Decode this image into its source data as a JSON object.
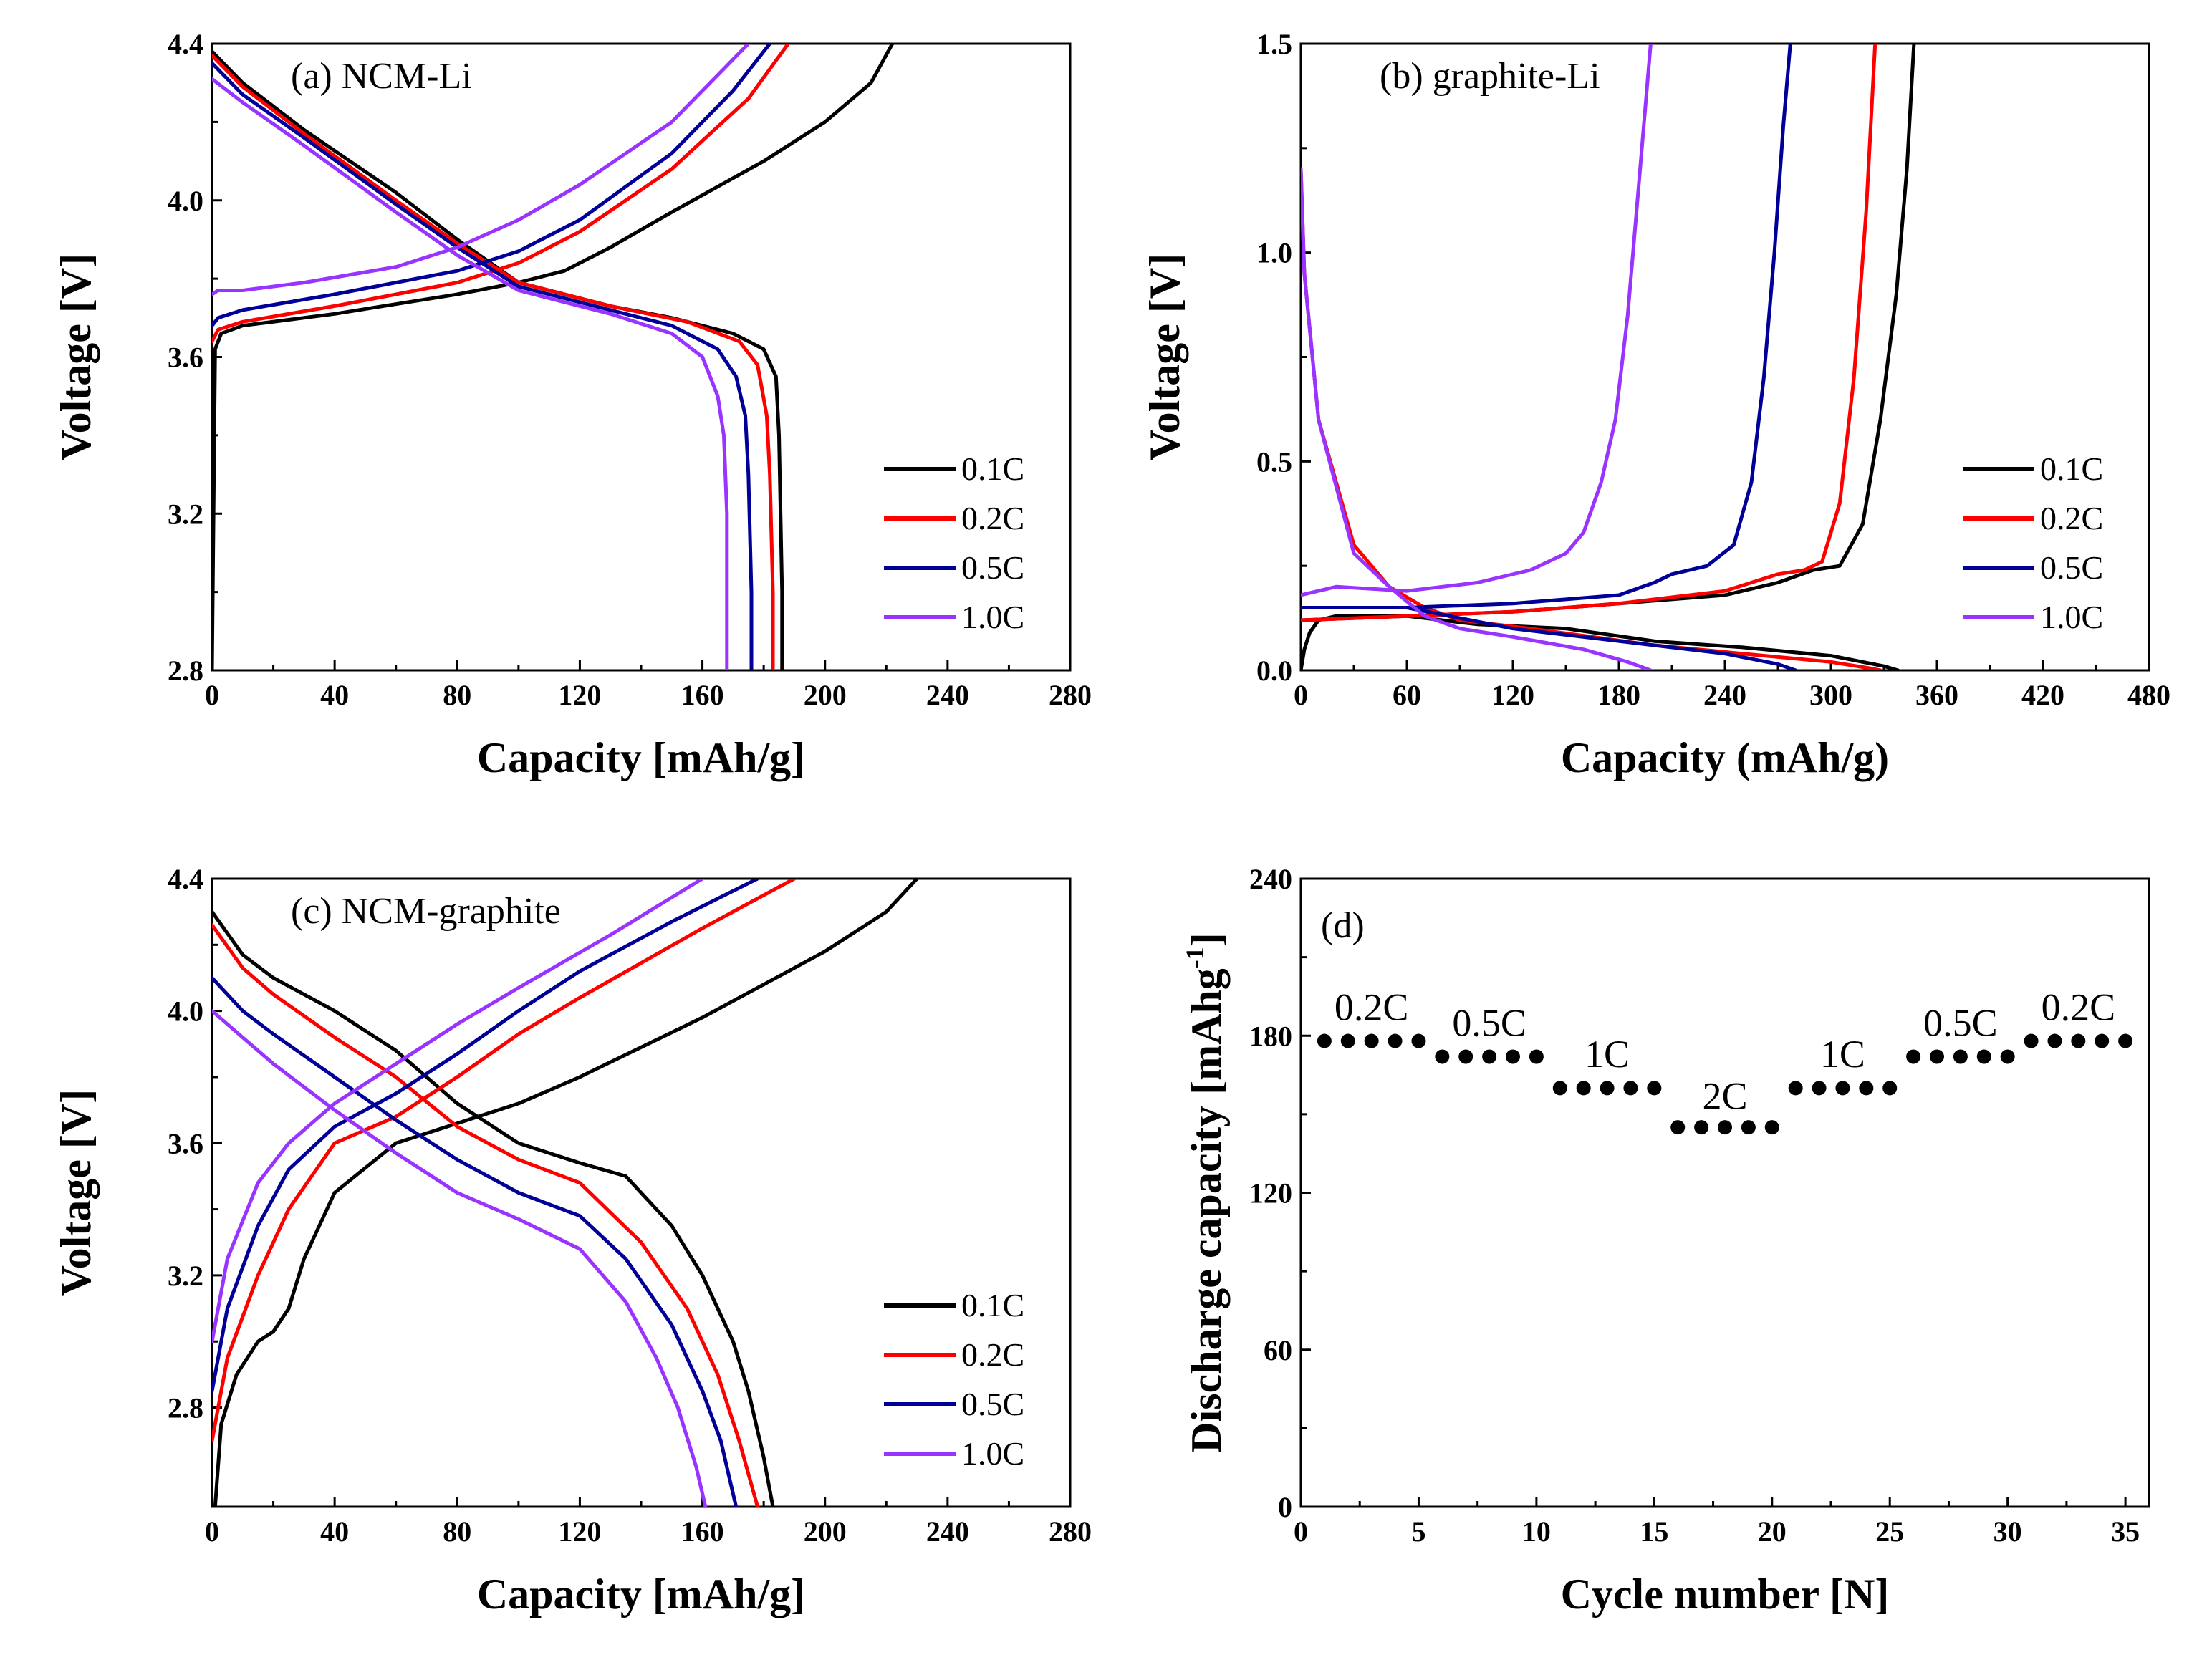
{
  "colors": {
    "0.1C": "#000000",
    "0.2C": "#ff0000",
    "0.5C": "#000099",
    "1.0C": "#9933ff"
  },
  "chart_data": [
    {
      "panel": "a",
      "type": "line",
      "title": "(a) NCM-Li",
      "xlabel": "Capacity [mAh/g]",
      "ylabel": "Voltage [V]",
      "xlim": [
        0,
        280
      ],
      "ylim": [
        2.8,
        4.4
      ],
      "xticks": [
        "0",
        "40",
        "80",
        "120",
        "160",
        "200",
        "240",
        "280"
      ],
      "yticks": [
        "2.8",
        "3.2",
        "3.6",
        "4.0",
        "4.4"
      ],
      "legend": [
        "0.1C",
        "0.2C",
        "0.5C",
        "1.0C"
      ],
      "legend_position": "bottom-right",
      "series": [
        {
          "name": "0.1C",
          "branch": "charge",
          "x": [
            0,
            1,
            3,
            10,
            40,
            80,
            100,
            115,
            130,
            150,
            180,
            200,
            215,
            222
          ],
          "y": [
            2.8,
            3.62,
            3.66,
            3.68,
            3.71,
            3.76,
            3.79,
            3.82,
            3.88,
            3.97,
            4.1,
            4.2,
            4.3,
            4.4
          ]
        },
        {
          "name": "0.1C",
          "branch": "discharge",
          "x": [
            0,
            10,
            30,
            60,
            80,
            100,
            130,
            150,
            170,
            180,
            184,
            185,
            186,
            186
          ],
          "y": [
            4.38,
            4.3,
            4.18,
            4.02,
            3.9,
            3.79,
            3.73,
            3.7,
            3.66,
            3.62,
            3.55,
            3.4,
            3.0,
            2.8
          ]
        },
        {
          "name": "0.2C",
          "branch": "charge",
          "x": [
            0,
            2,
            10,
            40,
            80,
            100,
            120,
            150,
            175,
            188
          ],
          "y": [
            3.64,
            3.67,
            3.69,
            3.73,
            3.79,
            3.84,
            3.92,
            4.08,
            4.26,
            4.4
          ]
        },
        {
          "name": "0.2C",
          "branch": "discharge",
          "x": [
            0,
            10,
            30,
            60,
            80,
            100,
            130,
            155,
            172,
            178,
            181,
            182,
            183,
            183
          ],
          "y": [
            4.37,
            4.29,
            4.17,
            4.0,
            3.89,
            3.79,
            3.73,
            3.69,
            3.64,
            3.58,
            3.45,
            3.3,
            3.0,
            2.8
          ]
        },
        {
          "name": "0.5C",
          "branch": "charge",
          "x": [
            0,
            2,
            10,
            40,
            80,
            100,
            120,
            150,
            170,
            182
          ],
          "y": [
            3.68,
            3.7,
            3.72,
            3.76,
            3.82,
            3.87,
            3.95,
            4.12,
            4.28,
            4.4
          ]
        },
        {
          "name": "0.5C",
          "branch": "discharge",
          "x": [
            0,
            10,
            30,
            60,
            80,
            100,
            130,
            150,
            165,
            171,
            174,
            175,
            176,
            176
          ],
          "y": [
            4.35,
            4.27,
            4.16,
            3.99,
            3.88,
            3.78,
            3.72,
            3.68,
            3.62,
            3.55,
            3.45,
            3.3,
            3.0,
            2.8
          ]
        },
        {
          "name": "1.0C",
          "branch": "charge",
          "x": [
            0,
            2,
            10,
            30,
            60,
            80,
            100,
            120,
            150,
            175
          ],
          "y": [
            3.76,
            3.77,
            3.77,
            3.79,
            3.83,
            3.88,
            3.95,
            4.04,
            4.2,
            4.4
          ]
        },
        {
          "name": "1.0C",
          "branch": "discharge",
          "x": [
            0,
            10,
            30,
            60,
            80,
            100,
            130,
            150,
            160,
            165,
            167,
            168,
            168,
            168
          ],
          "y": [
            4.31,
            4.25,
            4.14,
            3.97,
            3.86,
            3.77,
            3.71,
            3.66,
            3.6,
            3.5,
            3.4,
            3.2,
            3.0,
            2.8
          ]
        }
      ]
    },
    {
      "panel": "b",
      "type": "line",
      "title": "(b) graphite-Li",
      "xlabel": "Capacity (mAh/g)",
      "ylabel": "Voltage [V]",
      "xlim": [
        0,
        480
      ],
      "ylim": [
        0,
        1.5
      ],
      "xticks": [
        "0",
        "60",
        "120",
        "180",
        "240",
        "300",
        "360",
        "420",
        "480"
      ],
      "yticks": [
        "0.0",
        "0.5",
        "1.0",
        "1.5"
      ],
      "legend": [
        "0.1C",
        "0.2C",
        "0.5C",
        "1.0C"
      ],
      "legend_position": "bottom-right",
      "series": [
        {
          "name": "0.1C",
          "branch": "discharge",
          "x": [
            0,
            2,
            5,
            10,
            20,
            60,
            80,
            100,
            150,
            200,
            250,
            300,
            330,
            338
          ],
          "y": [
            0.0,
            0.05,
            0.09,
            0.12,
            0.13,
            0.13,
            0.12,
            0.11,
            0.1,
            0.07,
            0.055,
            0.035,
            0.01,
            0.0
          ]
        },
        {
          "name": "0.1C",
          "branch": "charge",
          "x": [
            0,
            60,
            120,
            180,
            240,
            270,
            290,
            305,
            318,
            328,
            337,
            343,
            347
          ],
          "y": [
            0.12,
            0.13,
            0.14,
            0.16,
            0.18,
            0.21,
            0.24,
            0.25,
            0.35,
            0.6,
            0.9,
            1.2,
            1.5
          ]
        },
        {
          "name": "0.2C",
          "branch": "discharge",
          "x": [
            0,
            2,
            10,
            30,
            50,
            70,
            90,
            130,
            200,
            250,
            300,
            322,
            328
          ],
          "y": [
            1.2,
            0.95,
            0.6,
            0.3,
            0.2,
            0.15,
            0.12,
            0.1,
            0.06,
            0.04,
            0.02,
            0.005,
            0.0
          ]
        },
        {
          "name": "0.2C",
          "branch": "charge",
          "x": [
            0,
            60,
            120,
            180,
            240,
            270,
            285,
            295,
            305,
            313,
            320,
            325
          ],
          "y": [
            0.12,
            0.13,
            0.14,
            0.16,
            0.19,
            0.23,
            0.24,
            0.26,
            0.4,
            0.7,
            1.1,
            1.5
          ]
        },
        {
          "name": "0.5C",
          "branch": "discharge",
          "x": [
            0,
            60,
            120,
            200,
            240,
            270,
            280
          ],
          "y": [
            0.15,
            0.15,
            0.1,
            0.06,
            0.04,
            0.015,
            0.0
          ]
        },
        {
          "name": "0.5C",
          "branch": "charge",
          "x": [
            0,
            60,
            120,
            180,
            200,
            210,
            230,
            245,
            255,
            262,
            268,
            273,
            277
          ],
          "y": [
            0.15,
            0.15,
            0.16,
            0.18,
            0.21,
            0.23,
            0.25,
            0.3,
            0.45,
            0.7,
            1.0,
            1.3,
            1.5
          ]
        },
        {
          "name": "1.0C",
          "branch": "discharge",
          "x": [
            0,
            2,
            10,
            30,
            50,
            70,
            90,
            120,
            160,
            185,
            198
          ],
          "y": [
            1.2,
            0.95,
            0.6,
            0.28,
            0.2,
            0.13,
            0.1,
            0.08,
            0.05,
            0.02,
            0.0
          ]
        },
        {
          "name": "1.0C",
          "branch": "charge",
          "x": [
            0,
            20,
            60,
            100,
            130,
            150,
            160,
            170,
            178,
            185,
            190,
            195,
            198
          ],
          "y": [
            0.18,
            0.2,
            0.19,
            0.21,
            0.24,
            0.28,
            0.33,
            0.45,
            0.6,
            0.85,
            1.1,
            1.35,
            1.5
          ]
        }
      ]
    },
    {
      "panel": "c",
      "type": "line",
      "title": "(c) NCM-graphite",
      "xlabel": "Capacity [mAh/g]",
      "ylabel": "Voltage [V]",
      "xlim": [
        0,
        280
      ],
      "ylim": [
        2.5,
        4.4
      ],
      "xticks": [
        "0",
        "40",
        "80",
        "120",
        "160",
        "200",
        "240",
        "280"
      ],
      "yticks": [
        "2.8",
        "3.2",
        "3.6",
        "4.0",
        "4.4"
      ],
      "legend": [
        "0.1C",
        "0.2C",
        "0.5C",
        "1.0C"
      ],
      "legend_position": "bottom-right",
      "series": [
        {
          "name": "0.1C",
          "branch": "charge",
          "x": [
            1,
            3,
            8,
            15,
            20,
            25,
            30,
            40,
            60,
            80,
            100,
            120,
            160,
            200,
            220,
            230
          ],
          "y": [
            2.5,
            2.75,
            2.9,
            3.0,
            3.03,
            3.1,
            3.25,
            3.45,
            3.6,
            3.66,
            3.72,
            3.8,
            3.98,
            4.18,
            4.3,
            4.4
          ]
        },
        {
          "name": "0.1C",
          "branch": "discharge",
          "x": [
            0,
            10,
            20,
            40,
            60,
            80,
            100,
            120,
            135,
            150,
            160,
            170,
            175,
            180,
            183
          ],
          "y": [
            4.3,
            4.17,
            4.1,
            4.0,
            3.88,
            3.72,
            3.6,
            3.54,
            3.5,
            3.35,
            3.2,
            3.0,
            2.85,
            2.65,
            2.5
          ]
        },
        {
          "name": "0.2C",
          "branch": "charge",
          "x": [
            0,
            5,
            15,
            25,
            40,
            60,
            80,
            100,
            120,
            160,
            190
          ],
          "y": [
            2.7,
            2.95,
            3.2,
            3.4,
            3.6,
            3.68,
            3.8,
            3.93,
            4.04,
            4.25,
            4.4
          ]
        },
        {
          "name": "0.2C",
          "branch": "discharge",
          "x": [
            0,
            10,
            20,
            40,
            60,
            80,
            100,
            120,
            140,
            155,
            165,
            172,
            178
          ],
          "y": [
            4.26,
            4.13,
            4.05,
            3.92,
            3.8,
            3.65,
            3.55,
            3.48,
            3.3,
            3.1,
            2.9,
            2.7,
            2.5
          ]
        },
        {
          "name": "0.5C",
          "branch": "charge",
          "x": [
            0,
            5,
            15,
            25,
            40,
            60,
            80,
            100,
            120,
            150,
            178
          ],
          "y": [
            2.85,
            3.1,
            3.35,
            3.52,
            3.65,
            3.75,
            3.87,
            4.0,
            4.12,
            4.27,
            4.4
          ]
        },
        {
          "name": "0.5C",
          "branch": "discharge",
          "x": [
            0,
            10,
            20,
            40,
            60,
            80,
            100,
            120,
            135,
            150,
            160,
            166,
            171
          ],
          "y": [
            4.1,
            4.0,
            3.93,
            3.8,
            3.67,
            3.55,
            3.45,
            3.38,
            3.25,
            3.05,
            2.85,
            2.7,
            2.5
          ]
        },
        {
          "name": "1.0C",
          "branch": "charge",
          "x": [
            0,
            5,
            15,
            25,
            40,
            60,
            80,
            100,
            130,
            160
          ],
          "y": [
            3.0,
            3.25,
            3.48,
            3.6,
            3.72,
            3.84,
            3.96,
            4.07,
            4.23,
            4.4
          ]
        },
        {
          "name": "1.0C",
          "branch": "discharge",
          "x": [
            0,
            10,
            20,
            40,
            60,
            80,
            100,
            120,
            135,
            145,
            152,
            158,
            161
          ],
          "y": [
            4.0,
            3.92,
            3.84,
            3.7,
            3.57,
            3.45,
            3.37,
            3.28,
            3.12,
            2.95,
            2.8,
            2.62,
            2.5
          ]
        }
      ]
    },
    {
      "panel": "d",
      "type": "scatter",
      "title": "(d)",
      "xlabel": "Cycle number [N]",
      "ylabel": "Discharge capacity [mAhg",
      "ylabel_sup": "-1",
      "ylabel_end": "]",
      "xlim": [
        0,
        36
      ],
      "ylim": [
        0,
        240
      ],
      "xticks": [
        "0",
        "5",
        "10",
        "15",
        "20",
        "25",
        "30",
        "35"
      ],
      "yticks": [
        "0",
        "60",
        "120",
        "180",
        "240"
      ],
      "x": [
        1,
        2,
        3,
        4,
        5,
        6,
        7,
        8,
        9,
        10,
        11,
        12,
        13,
        14,
        15,
        16,
        17,
        18,
        19,
        20,
        21,
        22,
        23,
        24,
        25,
        26,
        27,
        28,
        29,
        30,
        31,
        32,
        33,
        34,
        35
      ],
      "values": [
        178,
        178,
        178,
        178,
        178,
        172,
        172,
        172,
        172,
        172,
        160,
        160,
        160,
        160,
        160,
        145,
        145,
        145,
        145,
        145,
        160,
        160,
        160,
        160,
        160,
        172,
        172,
        172,
        172,
        172,
        178,
        178,
        178,
        178,
        178
      ],
      "annotations": [
        {
          "text": "0.2C",
          "x": 3,
          "y": 186
        },
        {
          "text": "0.5C",
          "x": 8,
          "y": 180
        },
        {
          "text": "1C",
          "x": 13,
          "y": 168
        },
        {
          "text": "2C",
          "x": 18,
          "y": 152
        },
        {
          "text": "1C",
          "x": 23,
          "y": 168
        },
        {
          "text": "0.5C",
          "x": 28,
          "y": 180
        },
        {
          "text": "0.2C",
          "x": 33,
          "y": 186
        }
      ]
    }
  ]
}
